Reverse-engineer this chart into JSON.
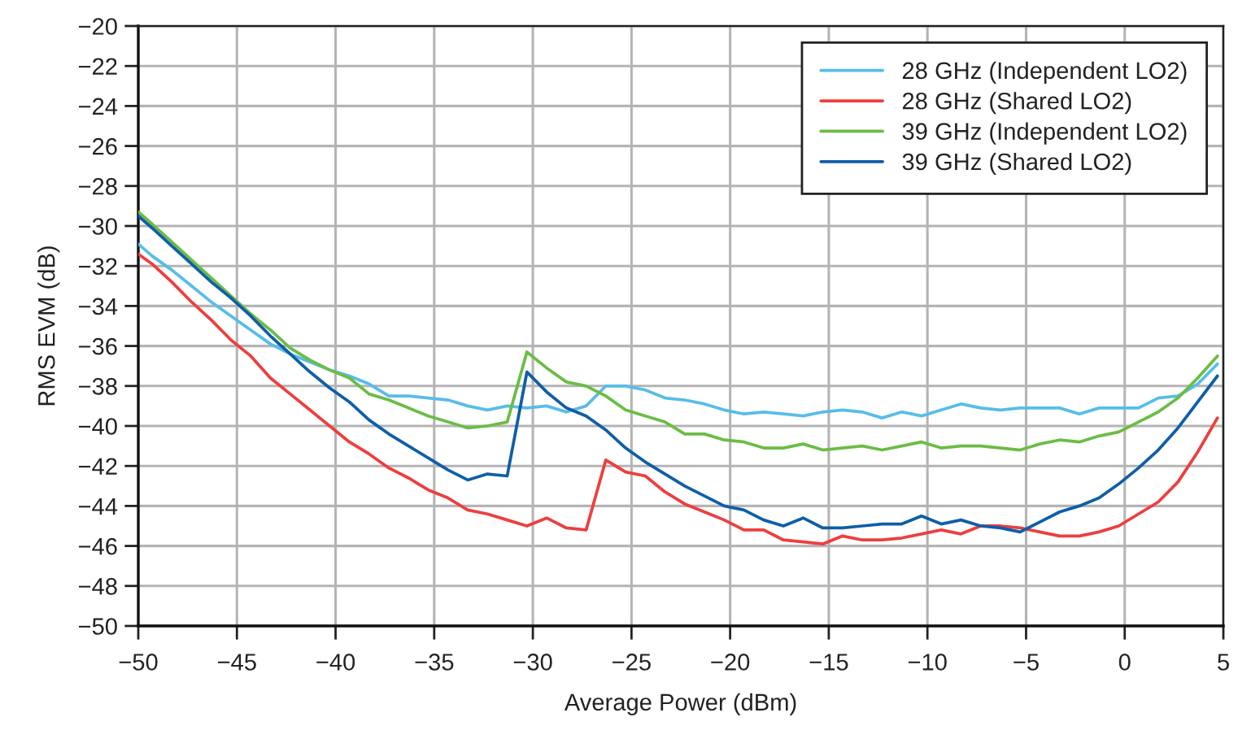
{
  "chart_data": {
    "type": "line",
    "xlabel": "Average Power (dBm)",
    "ylabel": "RMS EVM (dB)",
    "x": [
      -50,
      -49.3,
      -48.3,
      -47.3,
      -46.3,
      -45.3,
      -44.3,
      -43.3,
      -42.3,
      -41.3,
      -40.3,
      -39.3,
      -38.3,
      -37.3,
      -36.3,
      -35.3,
      -34.3,
      -33.3,
      -32.3,
      -31.3,
      -30.3,
      -29.3,
      -28.3,
      -27.3,
      -26.3,
      -25.3,
      -24.3,
      -23.3,
      -22.3,
      -21.3,
      -20.3,
      -19.3,
      -18.3,
      -17.3,
      -16.3,
      -15.3,
      -14.3,
      -13.3,
      -12.3,
      -11.3,
      -10.3,
      -9.3,
      -8.3,
      -7.3,
      -6.3,
      -5.3,
      -4.3,
      -3.3,
      -2.3,
      -1.3,
      -0.3,
      0.7,
      1.7,
      2.7,
      3.7,
      4.7
    ],
    "series": [
      {
        "name": "28 GHz (Independent LO2)",
        "color": "#57bde9",
        "values": [
          -30.9,
          -31.5,
          -32.2,
          -33.0,
          -33.8,
          -34.5,
          -35.2,
          -35.9,
          -36.4,
          -36.8,
          -37.2,
          -37.5,
          -37.9,
          -38.5,
          -38.5,
          -38.6,
          -38.7,
          -39.0,
          -39.2,
          -39.0,
          -39.1,
          -39.0,
          -39.3,
          -39.0,
          -38.0,
          -38.0,
          -38.2,
          -38.6,
          -38.7,
          -38.9,
          -39.2,
          -39.4,
          -39.3,
          -39.4,
          -39.5,
          -39.3,
          -39.2,
          -39.3,
          -39.6,
          -39.3,
          -39.5,
          -39.2,
          -38.9,
          -39.1,
          -39.2,
          -39.1,
          -39.1,
          -39.1,
          -39.4,
          -39.1,
          -39.1,
          -39.1,
          -38.6,
          -38.5,
          -37.9,
          -36.9
        ]
      },
      {
        "name": "28 GHz (Shared LO2)",
        "color": "#ee3e3e",
        "values": [
          -31.4,
          -31.9,
          -32.8,
          -33.8,
          -34.7,
          -35.7,
          -36.5,
          -37.6,
          -38.4,
          -39.2,
          -40.0,
          -40.8,
          -41.4,
          -42.1,
          -42.6,
          -43.2,
          -43.6,
          -44.2,
          -44.4,
          -44.7,
          -45.0,
          -44.6,
          -45.1,
          -45.2,
          -41.7,
          -42.3,
          -42.5,
          -43.3,
          -43.9,
          -44.3,
          -44.7,
          -45.2,
          -45.2,
          -45.7,
          -45.8,
          -45.9,
          -45.5,
          -45.7,
          -45.7,
          -45.6,
          -45.4,
          -45.2,
          -45.4,
          -45.0,
          -45.0,
          -45.1,
          -45.3,
          -45.5,
          -45.5,
          -45.3,
          -45.0,
          -44.4,
          -43.8,
          -42.8,
          -41.3,
          -39.6
        ]
      },
      {
        "name": "39 GHz (Independent LO2)",
        "color": "#6abd45",
        "values": [
          -29.3,
          -29.9,
          -30.8,
          -31.7,
          -32.6,
          -33.5,
          -34.4,
          -35.2,
          -36.1,
          -36.7,
          -37.2,
          -37.6,
          -38.4,
          -38.7,
          -39.1,
          -39.5,
          -39.8,
          -40.1,
          -40.0,
          -39.8,
          -36.3,
          -37.1,
          -37.8,
          -38.0,
          -38.5,
          -39.2,
          -39.5,
          -39.8,
          -40.4,
          -40.4,
          -40.7,
          -40.8,
          -41.1,
          -41.1,
          -40.9,
          -41.2,
          -41.1,
          -41.0,
          -41.2,
          -41.0,
          -40.8,
          -41.1,
          -41.0,
          -41.0,
          -41.1,
          -41.2,
          -40.9,
          -40.7,
          -40.8,
          -40.5,
          -40.3,
          -39.8,
          -39.3,
          -38.6,
          -37.6,
          -36.5
        ]
      },
      {
        "name": "39 GHz (Shared LO2)",
        "color": "#0f5ea8",
        "values": [
          -29.5,
          -30.1,
          -31.0,
          -31.9,
          -32.8,
          -33.6,
          -34.5,
          -35.5,
          -36.4,
          -37.3,
          -38.1,
          -38.8,
          -39.7,
          -40.4,
          -41.0,
          -41.6,
          -42.2,
          -42.7,
          -42.4,
          -42.5,
          -37.3,
          -38.3,
          -39.1,
          -39.5,
          -40.2,
          -41.1,
          -41.8,
          -42.4,
          -43.0,
          -43.5,
          -44.0,
          -44.2,
          -44.7,
          -45.0,
          -44.6,
          -45.1,
          -45.1,
          -45.0,
          -44.9,
          -44.9,
          -44.5,
          -44.9,
          -44.7,
          -45.0,
          -45.1,
          -45.3,
          -44.8,
          -44.3,
          -44.0,
          -43.6,
          -42.9,
          -42.1,
          -41.2,
          -40.1,
          -38.8,
          -37.5
        ]
      }
    ],
    "xlim": [
      -50,
      5
    ],
    "xticks": [
      -50,
      -45,
      -40,
      -35,
      -30,
      -25,
      -20,
      -15,
      -10,
      -5,
      0,
      5
    ],
    "ylim": [
      -50,
      -20
    ],
    "yticks": [
      -50,
      -48,
      -46,
      -44,
      -42,
      -40,
      -38,
      -36,
      -34,
      -32,
      -30,
      -28,
      -26,
      -24,
      -22,
      -20
    ],
    "grid": true,
    "legend": "top right"
  }
}
